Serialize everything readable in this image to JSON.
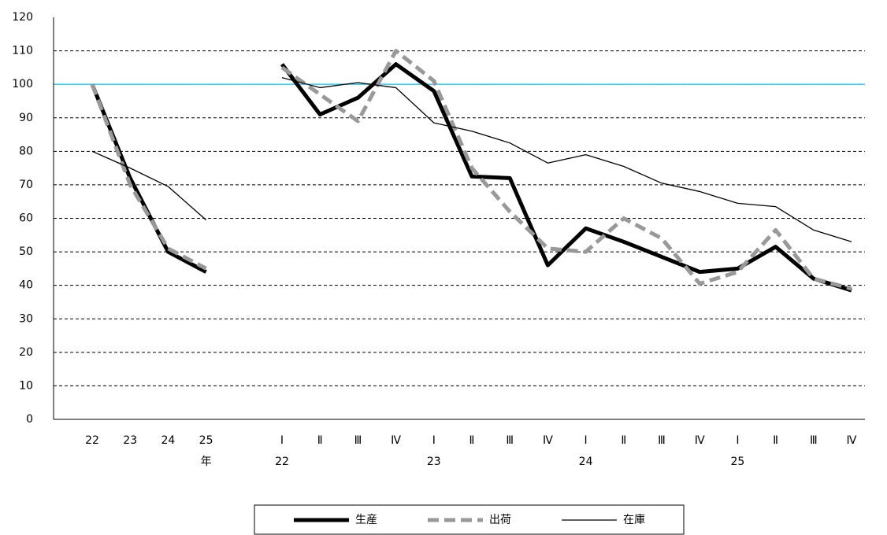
{
  "chart_data": {
    "type": "line",
    "categories": [
      "22",
      "23",
      "24",
      "25",
      null,
      "Ⅰ",
      "Ⅱ",
      "Ⅲ",
      "Ⅳ",
      "Ⅰ",
      "Ⅱ",
      "Ⅲ",
      "Ⅳ",
      "Ⅰ",
      "Ⅱ",
      "Ⅲ",
      "Ⅳ",
      "Ⅰ",
      "Ⅱ",
      "Ⅲ",
      "Ⅳ"
    ],
    "sublabels": [
      null,
      null,
      null,
      "年",
      null,
      "22",
      null,
      null,
      null,
      "23",
      null,
      null,
      null,
      "24",
      null,
      null,
      null,
      "25",
      null,
      null,
      null
    ],
    "series": [
      {
        "name": "生産",
        "color": "#000000",
        "style": "thick",
        "values": [
          100,
          72,
          50,
          44,
          null,
          106,
          91,
          96,
          106,
          98,
          72.5,
          72,
          46,
          57,
          53,
          48.5,
          44,
          45,
          51.5,
          42,
          38.5
        ]
      },
      {
        "name": "出荷",
        "color": "#999999",
        "style": "dashed",
        "values": [
          100,
          70,
          51,
          45,
          null,
          105,
          97,
          89,
          110,
          101,
          75,
          62,
          51,
          50,
          60,
          54,
          40.5,
          44,
          56.5,
          42,
          39
        ]
      },
      {
        "name": "在庫",
        "color": "#000000",
        "style": "thin",
        "values": [
          80,
          75,
          69.5,
          59.5,
          null,
          102,
          99,
          100.5,
          99,
          88.5,
          86,
          82.5,
          76.5,
          79,
          75.5,
          70.5,
          68,
          64.5,
          63.5,
          56.5,
          53
        ]
      }
    ],
    "ylim": [
      0,
      120
    ],
    "yticks": [
      0,
      10,
      20,
      30,
      40,
      50,
      60,
      70,
      80,
      90,
      100,
      110,
      120
    ],
    "grid": true,
    "reference_line": {
      "value": 100,
      "color": "#33ccee"
    },
    "legend": "bottom"
  }
}
